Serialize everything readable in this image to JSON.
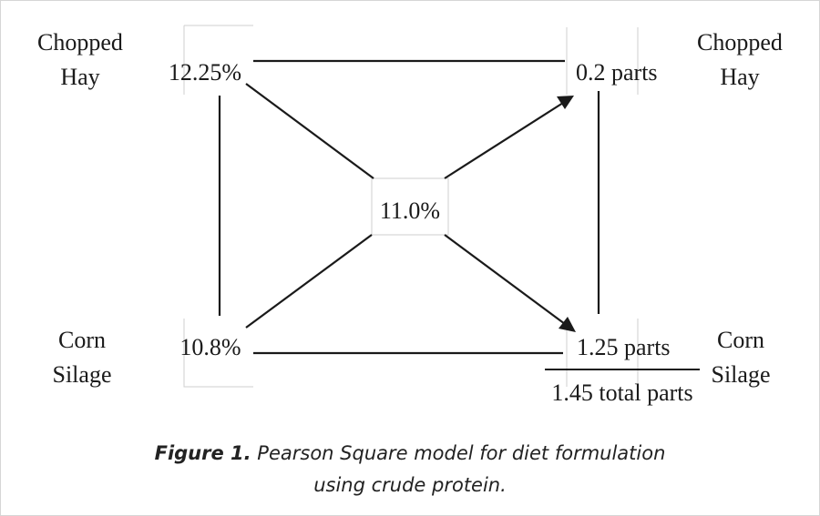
{
  "diagram": {
    "left_top_label": [
      "Chopped",
      "Hay"
    ],
    "left_bottom_label": [
      "Corn",
      "Silage"
    ],
    "right_top_label": [
      "Chopped",
      "Hay"
    ],
    "right_bottom_label": [
      "Corn",
      "Silage"
    ],
    "top_left_value": "12.25%",
    "bottom_left_value": "10.8%",
    "center_value": "11.0%",
    "top_right_value": "0.2 parts",
    "bottom_right_value": "1.25 parts",
    "total_value": "1.45 total parts"
  },
  "caption": {
    "prefix": "Figure 1.",
    "line1": " Pearson Square model for diet formulation",
    "line2": "using crude protein."
  }
}
